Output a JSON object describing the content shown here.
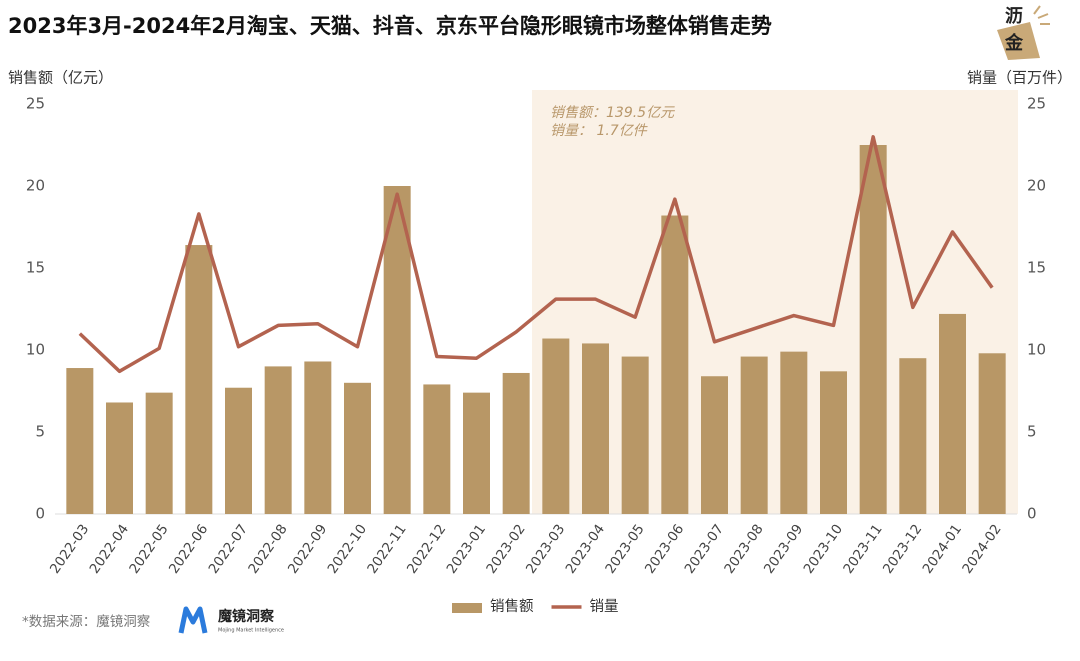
{
  "chart_data": {
    "type": "bar",
    "title": "2023年3月-2024年2月淘宝、天猫、抖音、京东平台隐形眼镜市场整体销售走势",
    "y_label": "销售额（亿元）",
    "y2_label": "销量（百万件）",
    "categories": [
      "2022-03",
      "2022-04",
      "2022-05",
      "2022-06",
      "2022-07",
      "2022-08",
      "2022-09",
      "2022-10",
      "2022-11",
      "2022-12",
      "2023-01",
      "2023-02",
      "2023-03",
      "2023-04",
      "2023-05",
      "2023-06",
      "2023-07",
      "2023-08",
      "2023-09",
      "2023-10",
      "2023-11",
      "2023-12",
      "2024-01",
      "2024-02"
    ],
    "series": [
      {
        "name": "销售额",
        "type": "bar",
        "color": "#b89766",
        "values": [
          8.9,
          6.8,
          7.4,
          16.4,
          7.7,
          9.0,
          9.3,
          8.0,
          20.0,
          7.9,
          7.4,
          8.6,
          10.7,
          10.4,
          9.6,
          18.2,
          8.4,
          9.6,
          9.9,
          8.7,
          22.5,
          9.5,
          12.2,
          9.8
        ]
      },
      {
        "name": "销量",
        "type": "line",
        "axis": "y2",
        "color": "#b3634f",
        "values": [
          11.0,
          8.7,
          10.1,
          18.3,
          10.2,
          11.5,
          11.6,
          10.2,
          19.5,
          9.6,
          9.5,
          11.1,
          13.1,
          13.1,
          12.0,
          19.2,
          10.5,
          11.3,
          12.1,
          11.5,
          23.0,
          12.6,
          17.2,
          13.8
        ]
      }
    ],
    "ylim": [
      0,
      25
    ],
    "yticks": [
      0,
      5,
      10,
      15,
      20,
      25
    ],
    "y2lim": [
      0,
      25
    ],
    "y2ticks": [
      0,
      5,
      10,
      15,
      20,
      25
    ],
    "highlight": [
      "2023-03",
      "2024-02"
    ],
    "annotation": [
      "销售额：139.5亿元",
      "销量：    1.7亿件"
    ],
    "legend": "bottom",
    "source": "*数据来源：魔镜洞察",
    "source_logo": "魔镜洞察",
    "source_logo_subtitle": "Mojing Market Intelligence",
    "brand_logo": [
      "沥",
      "金"
    ]
  }
}
